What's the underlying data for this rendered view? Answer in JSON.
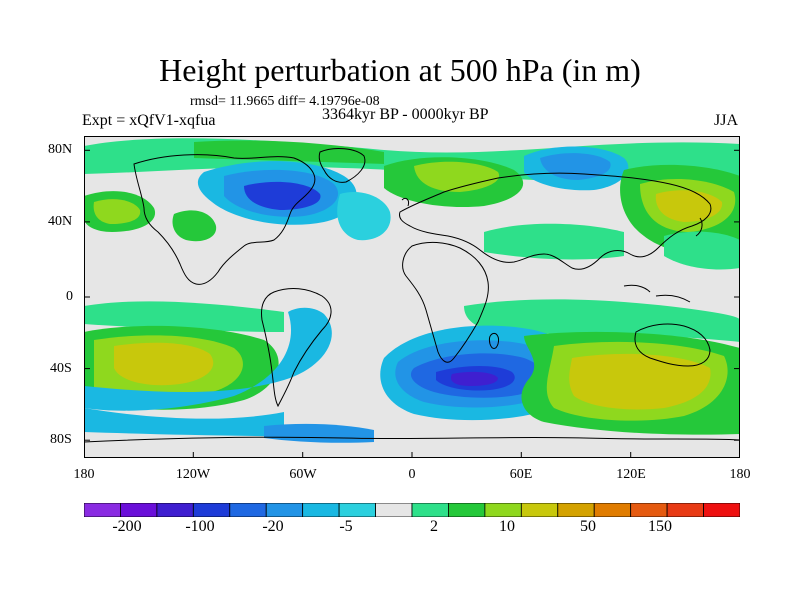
{
  "title": "Height perturbation at 500 hPa (in m)",
  "stats": "rmsd= 11.9665 diff= 4.19796e-08",
  "experiment": "Expt = xQfV1-xqfua",
  "period": "3364kyr BP - 0000kyr BP",
  "season": "JJA",
  "map": {
    "lat_labels": [
      "80N",
      "40N",
      "0",
      "40S",
      "80S"
    ],
    "lon_labels": [
      "180",
      "120W",
      "60W",
      "0",
      "60E",
      "120E",
      "180"
    ],
    "lat_range": [
      -90,
      90
    ],
    "lon_range": [
      -180,
      180
    ],
    "projection": "cylindrical-equidistant",
    "coastlines": true
  },
  "colorbar": {
    "label_values": [
      "-200",
      "-100",
      "-20",
      "-5",
      "2",
      "10",
      "50",
      "150"
    ],
    "colors": [
      "#8a2be2",
      "#6a0fd9",
      "#3f1fd0",
      "#1e3cd8",
      "#1f68e2",
      "#2294e6",
      "#1ab8e2",
      "#2bd0de",
      "#e6e6e6",
      "#2ee08a",
      "#25c83a",
      "#8fd81e",
      "#c8c80c",
      "#d4a200",
      "#e07c00",
      "#e55a10",
      "#e83a14",
      "#ee1010"
    ]
  },
  "colors": {
    "neutral_fill": "#e6e6e6",
    "strong_negative": "#1e3cd8",
    "positive": "#c8c80c"
  }
}
